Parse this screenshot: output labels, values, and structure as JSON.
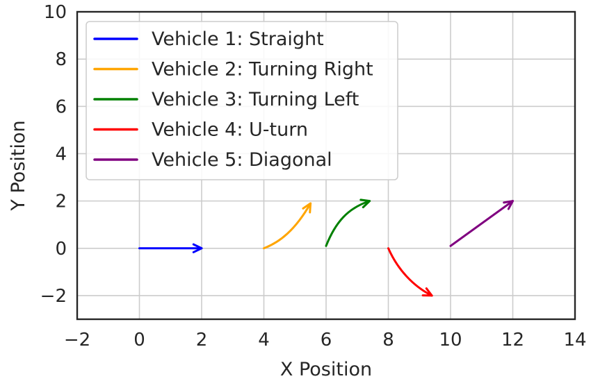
{
  "chart_data": {
    "type": "line",
    "title": "",
    "xlabel": "X Position",
    "ylabel": "Y Position",
    "xlim": [
      -2,
      14
    ],
    "ylim": [
      -3,
      10
    ],
    "xticks": [
      -2,
      0,
      2,
      4,
      6,
      8,
      10,
      12,
      14
    ],
    "yticks": [
      -2,
      0,
      2,
      4,
      6,
      8,
      10
    ],
    "grid": true,
    "legend_position": "upper-left",
    "series": [
      {
        "name": "Vehicle 1: Straight",
        "color": "#0000ff",
        "x": [
          0,
          2
        ],
        "y": [
          0,
          0
        ]
      },
      {
        "name": "Vehicle 2: Turning Right",
        "color": "#ffa500",
        "x": [
          4,
          4.5,
          5,
          5.5
        ],
        "y": [
          0,
          0.25,
          0.75,
          1.9
        ]
      },
      {
        "name": "Vehicle 3: Turning Left",
        "color": "#008000",
        "x": [
          6,
          6.3,
          6.7,
          7.4
        ],
        "y": [
          0.1,
          1.1,
          1.7,
          2.0
        ]
      },
      {
        "name": "Vehicle 4: U-turn",
        "color": "#ff0000",
        "x": [
          8,
          8.3,
          8.8,
          9.4
        ],
        "y": [
          0,
          -0.9,
          -1.6,
          -2.0
        ]
      },
      {
        "name": "Vehicle 5: Diagonal",
        "color": "#800080",
        "x": [
          10,
          12
        ],
        "y": [
          0.1,
          2.0
        ]
      }
    ]
  }
}
